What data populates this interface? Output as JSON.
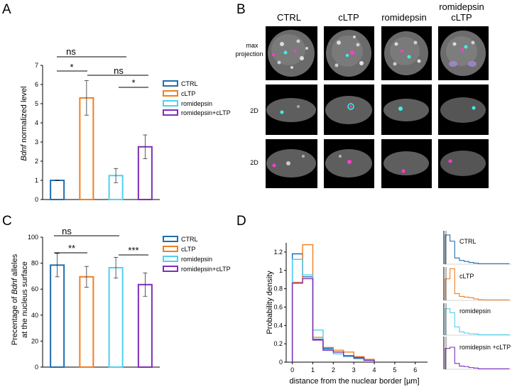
{
  "panels": {
    "A": "A",
    "B": "B",
    "C": "C",
    "D": "D"
  },
  "colors": {
    "CTRL": "#1f6fb0",
    "cLTP": "#f07f22",
    "romidepsin": "#4fd0f0",
    "romidepsin+cLTP": "#7e2fb8",
    "magenta": "#ff3cc8",
    "cyan": "#3cf0e6"
  },
  "panel_A": {
    "ylabel_italic": "Bdnf",
    "ylabel_rest": " normalized level",
    "significance": [
      "ns",
      "*",
      "ns",
      "*"
    ],
    "legend": [
      "CTRL",
      "cLTP",
      "romidepsin",
      "romidepsin+cLTP"
    ]
  },
  "panel_B": {
    "columns": [
      "CTRL",
      "cLTP",
      "romidepsin",
      "romidepsin",
      "cLTP"
    ],
    "rows": [
      "max",
      "projection",
      "2D",
      "2D"
    ]
  },
  "panel_C": {
    "ylabel_line1_pre": "Precentage of ",
    "ylabel_line1_italic": "Bdnf",
    "ylabel_line1_post": " alleles",
    "ylabel_line2": "at the nucleus surface",
    "significance": [
      "ns",
      "**",
      "***"
    ],
    "legend": [
      "CTRL",
      "cLTP",
      "romidepsin",
      "romidepsin+cLTP"
    ]
  },
  "panel_D": {
    "ylabel": "Probability density",
    "xlabel": "distance from the nuclear border [µm]",
    "small_labels": [
      "CTRL",
      "cLTP",
      "romidepsin",
      "romidepsin +cLTP"
    ]
  },
  "chart_data": [
    {
      "id": "A",
      "type": "bar",
      "categories": [
        "CTRL",
        "cLTP",
        "romidepsin",
        "romidepsin+cLTP"
      ],
      "values": [
        1.0,
        5.3,
        1.25,
        2.75
      ],
      "errors": [
        0.02,
        0.9,
        0.37,
        0.62
      ],
      "ylim": [
        0,
        7
      ],
      "yticks": [
        0,
        1,
        2,
        3,
        4,
        5,
        6,
        7
      ],
      "xlabel": "",
      "ylabel": "Bdnf normalized level"
    },
    {
      "id": "C",
      "type": "bar",
      "categories": [
        "CTRL",
        "cLTP",
        "romidepsin",
        "romidepsin+cLTP"
      ],
      "values": [
        78.5,
        69.5,
        76.5,
        63.5
      ],
      "errors": [
        9,
        8,
        8,
        9
      ],
      "ylim": [
        0,
        100
      ],
      "yticks": [
        0,
        20,
        40,
        60,
        80,
        100
      ],
      "xlabel": "",
      "ylabel": "Precentage of Bdnf alleles at the nucleus surface"
    },
    {
      "id": "D",
      "type": "line",
      "step": true,
      "bin_edges": [
        0,
        0.5,
        1,
        1.5,
        2,
        2.5,
        3,
        3.5,
        4
      ],
      "series": [
        {
          "name": "CTRL",
          "values": [
            1.18,
            0.93,
            0.25,
            0.15,
            0.11,
            0.07,
            0.04,
            0.02
          ]
        },
        {
          "name": "cLTP",
          "values": [
            0.87,
            1.28,
            0.27,
            0.16,
            0.13,
            0.11,
            0.06,
            0.03
          ]
        },
        {
          "name": "romidepsin",
          "values": [
            1.12,
            0.95,
            0.35,
            0.14,
            0.09,
            0.06,
            0.05,
            0.02
          ]
        },
        {
          "name": "romidepsin+cLTP",
          "values": [
            0.86,
            0.91,
            0.24,
            0.13,
            0.11,
            0.07,
            0.05,
            0.02
          ]
        }
      ],
      "xlim": [
        -0.3,
        6.6
      ],
      "xticks": [
        0,
        1,
        2,
        3,
        4,
        5,
        6
      ],
      "ylim": [
        0,
        1.3
      ],
      "yticks": [
        0,
        0.2,
        0.4,
        0.6,
        0.8,
        1,
        1.2
      ],
      "xlabel": "distance from the nuclear border [µm]",
      "ylabel": "Probability density"
    }
  ]
}
